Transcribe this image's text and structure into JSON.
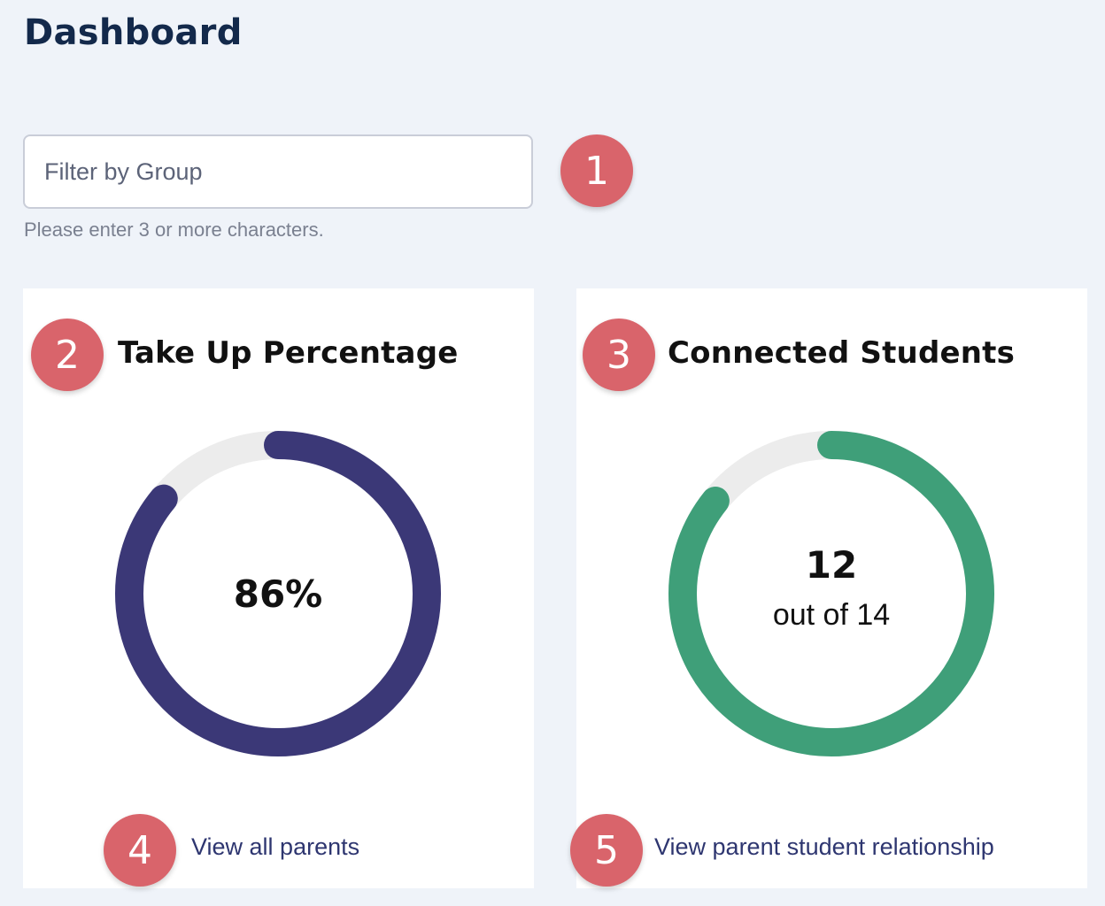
{
  "header": {
    "title": "Dashboard"
  },
  "filter": {
    "placeholder": "Filter by Group",
    "helper": "Please enter 3 or more characters."
  },
  "badges": {
    "b1": "1",
    "b2": "2",
    "b3": "3",
    "b4": "4",
    "b5": "5"
  },
  "take_up_card": {
    "title": "Take Up Percentage",
    "value_label": "86%",
    "fraction": 0.86,
    "link": "View all parents"
  },
  "connected_card": {
    "title": "Connected Students",
    "count": "12",
    "total_label": "out of 14",
    "connected": 12,
    "total": 14,
    "link": "View parent student relationship"
  },
  "colors": {
    "background": "#eff3f9",
    "take_up_ring": "#3b3877",
    "connected_ring": "#3f9f79",
    "ring_track": "#ececec",
    "badge": "#d9646b",
    "link": "#2e3670",
    "title": "#13294b"
  }
}
